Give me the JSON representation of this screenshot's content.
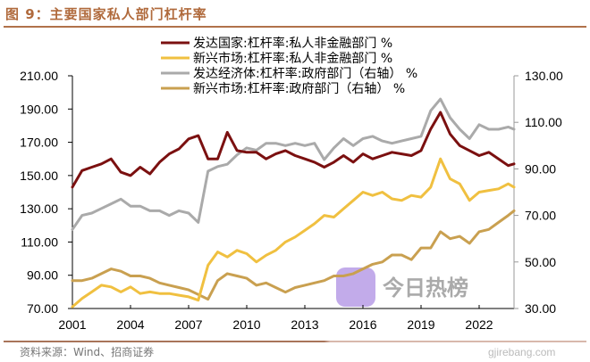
{
  "header": {
    "title": "图 9：主要国家私人部门杠杆率"
  },
  "footer": {
    "source": "资料来源：Wind、招商证券"
  },
  "watermark": {
    "glyph": "今",
    "text": "今日热榜",
    "url": "gjirebang.com",
    "color": "#b79ce6"
  },
  "chart_data": {
    "type": "line",
    "title": "主要国家私人部门杠杆率",
    "xlabel": "",
    "ylabel": "",
    "x_ticks": [
      "2001",
      "2004",
      "2007",
      "2010",
      "2013",
      "2016",
      "2019",
      "2022"
    ],
    "xlim": [
      2001,
      2023.8
    ],
    "y_left": {
      "ticks": [
        "70.00",
        "90.00",
        "110.00",
        "130.00",
        "150.00",
        "170.00",
        "190.00",
        "210.00"
      ],
      "lim": [
        70,
        210
      ]
    },
    "y_right": {
      "ticks": [
        "30.00",
        "50.00",
        "70.00",
        "90.00",
        "110.00",
        "130.00"
      ],
      "lim": [
        30,
        130
      ]
    },
    "grid": false,
    "legend_position": "top-center",
    "x": [
      2001,
      2001.5,
      2002,
      2002.5,
      2003,
      2003.5,
      2004,
      2004.5,
      2005,
      2005.5,
      2006,
      2006.5,
      2007,
      2007.5,
      2008,
      2008.5,
      2009,
      2009.5,
      2010,
      2010.5,
      2011,
      2011.5,
      2012,
      2012.5,
      2013,
      2013.5,
      2014,
      2014.5,
      2015,
      2015.5,
      2016,
      2016.5,
      2017,
      2017.5,
      2018,
      2018.5,
      2019,
      2019.5,
      2020,
      2020.5,
      2021,
      2021.5,
      2022,
      2022.5,
      2023,
      2023.5,
      2023.8
    ],
    "series": [
      {
        "name": "发达国家:杠杆率:私人非金融部门 %",
        "axis": "left",
        "color": "#7b1010",
        "values": [
          143,
          153,
          155,
          157,
          160,
          152,
          150,
          155,
          151,
          158,
          163,
          166,
          172,
          174,
          160,
          160,
          176,
          165,
          164,
          164,
          160,
          163,
          165,
          162,
          160,
          158,
          155,
          158,
          162,
          158,
          163,
          160,
          162,
          164,
          163,
          162,
          165,
          178,
          188,
          175,
          168,
          165,
          162,
          164,
          160,
          156,
          157
        ]
      },
      {
        "name": "新兴市场:杠杆率:私人非金融部门 %",
        "axis": "left",
        "color": "#f0c040",
        "values": [
          71,
          76,
          80,
          84,
          83,
          80,
          83,
          79,
          80,
          79,
          79,
          78,
          77,
          75,
          96,
          104,
          101,
          105,
          103,
          98,
          102,
          105,
          110,
          113,
          117,
          121,
          126,
          125,
          130,
          135,
          140,
          138,
          140,
          136,
          135,
          138,
          137,
          143,
          160,
          148,
          145,
          135,
          140,
          141,
          142,
          145,
          143
        ]
      },
      {
        "name": "发达经济体:杠杆率:政府部门（右轴） %",
        "axis": "right",
        "color": "#aaaaaa",
        "values": [
          64,
          70,
          71,
          73,
          75,
          77,
          74,
          74,
          72,
          72,
          70,
          72,
          71,
          67,
          89,
          91,
          92,
          96,
          99,
          98,
          101,
          101,
          100,
          101,
          100,
          101,
          94,
          99,
          103,
          100,
          103,
          104,
          102,
          101,
          102,
          103,
          104,
          115,
          120,
          112,
          107,
          103,
          109,
          107,
          107,
          108,
          107
        ]
      },
      {
        "name": "新兴市场:杠杆率:政府部门（右轴） %",
        "axis": "right",
        "color": "#c9a050",
        "values": [
          42,
          42,
          43,
          45,
          47,
          46,
          44,
          44,
          43,
          41,
          40,
          39,
          38,
          36,
          34,
          42,
          45,
          44,
          43,
          40,
          41,
          39,
          37,
          39,
          40,
          41,
          42,
          44,
          44,
          45,
          47,
          49,
          50,
          53,
          53,
          51,
          56,
          56,
          63,
          60,
          61,
          58,
          63,
          64,
          67,
          70,
          72
        ]
      }
    ]
  }
}
